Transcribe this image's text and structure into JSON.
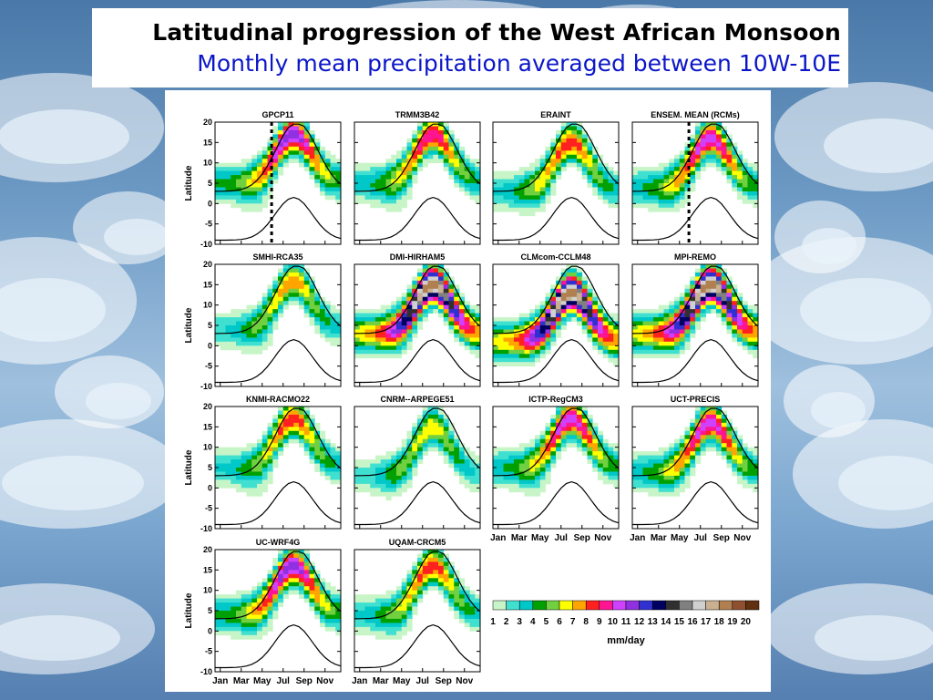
{
  "slide": {
    "title": "Latitudinal progression of the West African Monsoon",
    "subtitle": "Monthly mean precipitation averaged between 10W-10E"
  },
  "colors": {
    "title_black": "#000000",
    "subtitle_blue": "#0b16c8",
    "background": "snow-covered landscape (blue/white)"
  },
  "chart_data": {
    "type": "heatmap",
    "ylabel": "Latitude",
    "y_ticks": [
      20,
      15,
      10,
      5,
      0,
      -5,
      -10
    ],
    "ylim": [
      -10,
      20
    ],
    "x_ticks": [
      "Jan",
      "Mar",
      "May",
      "Jul",
      "Sep",
      "Nov"
    ],
    "colorbar": {
      "unit": "mm/day",
      "levels": [
        1,
        2,
        3,
        4,
        5,
        6,
        7,
        8,
        9,
        10,
        11,
        12,
        13,
        14,
        15,
        16,
        17,
        18,
        19,
        20
      ],
      "colors": [
        "#c8f5c8",
        "#40e0d0",
        "#00c8c8",
        "#00a000",
        "#70d040",
        "#ffff00",
        "#ffa500",
        "#ff2020",
        "#ff1493",
        "#d040ff",
        "#9030e0",
        "#3030d0",
        "#000060",
        "#303030",
        "#808080",
        "#d0d0d0",
        "#c8b090",
        "#b08050",
        "#905030",
        "#603010"
      ]
    },
    "panels": [
      {
        "name": "GPCP11",
        "peak": 12,
        "center": 9,
        "dashed_line": true
      },
      {
        "name": "TRMM3B42",
        "peak": 10,
        "center": 9
      },
      {
        "name": "ERAINT",
        "peak": 9,
        "center": 7
      },
      {
        "name": "ENSEM. MEAN (RCMs)",
        "peak": 11,
        "center": 8,
        "dashed_line": true
      },
      {
        "name": "SMHI-RCA35",
        "peak": 8,
        "center": 8
      },
      {
        "name": "DMI-HIRHAM5",
        "peak": 19,
        "center": 7
      },
      {
        "name": "CLMcom-CCLM48",
        "peak": 19,
        "center": 5
      },
      {
        "name": "MPI-REMO",
        "peak": 19,
        "center": 7
      },
      {
        "name": "KNMI-RACMO22",
        "peak": 9,
        "center": 9
      },
      {
        "name": "CNRM--ARPEGE51",
        "peak": 7,
        "center": 7
      },
      {
        "name": "ICTP-RegCM3",
        "peak": 11,
        "center": 9
      },
      {
        "name": "UCT-PRECIS",
        "peak": 11,
        "center": 8
      },
      {
        "name": "UC-WRF4G",
        "peak": 12,
        "center": 8
      },
      {
        "name": "UQAM-CRCM5",
        "peak": 9,
        "center": 8
      }
    ]
  }
}
